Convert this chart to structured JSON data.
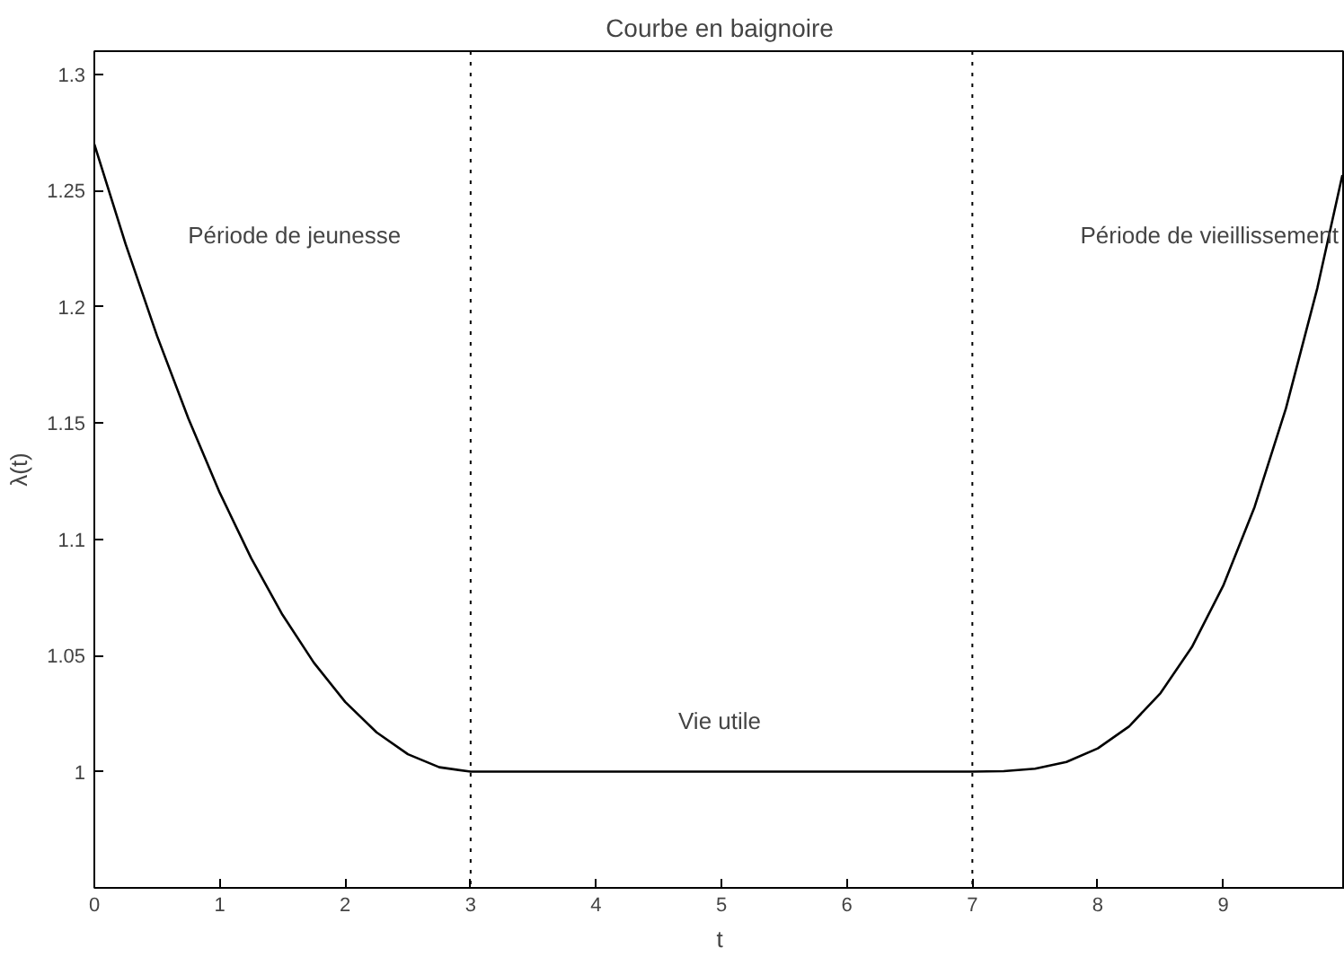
{
  "chart_data": {
    "type": "line",
    "title": "Courbe en baignoire",
    "xlabel": "t",
    "ylabel": "λ(t)",
    "xlim": [
      0,
      9.97
    ],
    "ylim": [
      0.95,
      1.31
    ],
    "xticks": [
      0,
      1,
      2,
      3,
      4,
      5,
      6,
      7,
      8,
      9
    ],
    "yticks": [
      1,
      1.05,
      1.1,
      1.15,
      1.2,
      1.25,
      1.3
    ],
    "grid": false,
    "marker": "none",
    "line_style": "solid",
    "series": [
      {
        "color": "#000000",
        "x": [
          0,
          0.25,
          0.5,
          0.75,
          1,
          1.25,
          1.5,
          1.75,
          2,
          2.25,
          2.5,
          2.75,
          3,
          7,
          7.25,
          7.5,
          7.75,
          8,
          8.25,
          8.5,
          8.75,
          9,
          9.25,
          9.5,
          9.75,
          9.95
        ],
        "values": [
          1.27,
          1.2269,
          1.1875,
          1.1519,
          1.12,
          1.0919,
          1.0675,
          1.0469,
          1.03,
          1.0169,
          1.0075,
          1.0019,
          1,
          1,
          1.0002,
          1.0013,
          1.0042,
          1.01,
          1.0195,
          1.0338,
          1.0536,
          1.08,
          1.1139,
          1.1563,
          1.208,
          1.2567
        ]
      }
    ],
    "ref_lines": [
      {
        "axis": "x",
        "value": 3,
        "color": "#000000",
        "line_style": "dotted"
      },
      {
        "axis": "x",
        "value": 7,
        "color": "#000000",
        "line_style": "dotted"
      }
    ],
    "annotations": [
      "Période de jeunesse",
      "Vie utile",
      "Période de vieillissement"
    ]
  }
}
